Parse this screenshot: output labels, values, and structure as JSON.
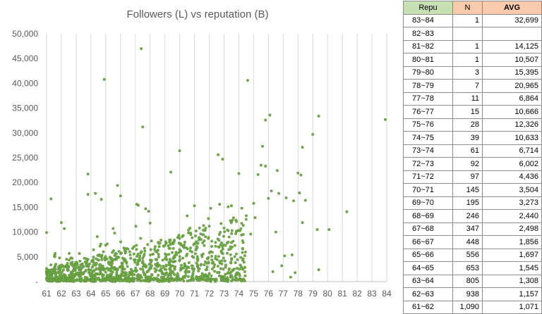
{
  "chart_data": {
    "type": "scatter",
    "title": "Followers (L) vs reputation (B)",
    "xlim": [
      61,
      84
    ],
    "ylim": [
      0,
      50000
    ],
    "x_ticks": [
      61,
      62,
      63,
      64,
      65,
      66,
      67,
      68,
      69,
      70,
      71,
      72,
      73,
      74,
      75,
      76,
      77,
      78,
      79,
      80,
      81,
      82,
      83,
      84
    ],
    "x_tick_labels": [
      "61",
      "62",
      "63",
      "64",
      "65",
      "66",
      "67",
      "68",
      "69",
      "70",
      "71",
      "72",
      "73",
      "74",
      "75",
      "76",
      "77",
      "78",
      "79",
      "80",
      "81",
      "82",
      "83",
      "84"
    ],
    "y_ticks": [
      0,
      5000,
      10000,
      15000,
      20000,
      25000,
      30000,
      35000,
      40000,
      45000,
      50000
    ],
    "y_tick_labels": [
      "-",
      "5,000",
      "10,000",
      "15,000",
      "20,000",
      "25,000",
      "30,000",
      "35,000",
      "40,000",
      "45,000",
      "50,000"
    ],
    "grid": "vertical",
    "marker_color": "#70ad47",
    "marker_edge": "#548235",
    "points": [
      [
        67.4,
        47000
      ],
      [
        64.9,
        40800
      ],
      [
        74.6,
        40600
      ],
      [
        83.9,
        32700
      ],
      [
        79.4,
        33400
      ],
      [
        76.1,
        33600
      ],
      [
        75.8,
        32600
      ],
      [
        67.5,
        31200
      ],
      [
        79.0,
        29700
      ],
      [
        78.3,
        27100
      ],
      [
        75.6,
        27300
      ],
      [
        72.6,
        25600
      ],
      [
        72.9,
        24700
      ],
      [
        70.0,
        26400
      ],
      [
        69.4,
        22100
      ],
      [
        63.8,
        21700
      ],
      [
        74.0,
        21800
      ],
      [
        78.0,
        21900
      ],
      [
        78.2,
        21500
      ],
      [
        75.5,
        23500
      ],
      [
        75.8,
        23300
      ],
      [
        76.6,
        22400
      ],
      [
        75.3,
        21600
      ],
      [
        65.8,
        19400
      ],
      [
        66.0,
        17300
      ],
      [
        63.8,
        17600
      ],
      [
        64.3,
        17800
      ],
      [
        61.3,
        16700
      ],
      [
        64.7,
        16600
      ],
      [
        67.1,
        15600
      ],
      [
        67.2,
        15400
      ],
      [
        67.7,
        14700
      ],
      [
        67.9,
        14200
      ],
      [
        71.0,
        15300
      ],
      [
        72.1,
        14800
      ],
      [
        72.7,
        15600
      ],
      [
        73.5,
        15300
      ],
      [
        74.2,
        14800
      ],
      [
        75.0,
        15800
      ],
      [
        76.0,
        16800
      ],
      [
        76.2,
        18300
      ],
      [
        76.7,
        17800
      ],
      [
        77.2,
        16900
      ],
      [
        77.7,
        16300
      ],
      [
        78.1,
        17900
      ],
      [
        78.5,
        16400
      ],
      [
        79.3,
        10500
      ],
      [
        80.1,
        10500
      ],
      [
        81.3,
        14100
      ],
      [
        79.4,
        2400
      ],
      [
        77.1,
        5200
      ],
      [
        77.6,
        5400
      ],
      [
        78.3,
        11900
      ],
      [
        75.1,
        12900
      ],
      [
        74.5,
        13300
      ],
      [
        73.8,
        12400
      ],
      [
        61.0,
        9900
      ],
      [
        62.0,
        11900
      ],
      [
        62.2,
        10700
      ],
      [
        65.5,
        10700
      ],
      [
        65.6,
        9800
      ],
      [
        68.0,
        11800
      ],
      [
        72.0,
        11200
      ],
      [
        69.0,
        7300
      ],
      [
        71.3,
        8400
      ],
      [
        70.6,
        10400
      ],
      [
        73.0,
        10800
      ],
      [
        74.8,
        9600
      ],
      [
        76.5,
        10000
      ],
      [
        74.4,
        2000
      ],
      [
        76.3,
        2000
      ],
      [
        77.5,
        900
      ],
      [
        77.8,
        1800
      ],
      [
        76.9,
        3200
      ]
    ],
    "cluster": {
      "seed": 7,
      "count": 1250
    }
  },
  "table": {
    "headers": {
      "repu": "Repu",
      "n": "N",
      "avg": "AVG"
    },
    "rows": [
      {
        "repu": "83~84",
        "n": "1",
        "avg": "32,699"
      },
      {
        "repu": "82~83",
        "n": "",
        "avg": ""
      },
      {
        "repu": "81~82",
        "n": "1",
        "avg": "14,125"
      },
      {
        "repu": "80~81",
        "n": "1",
        "avg": "10,507"
      },
      {
        "repu": "79~80",
        "n": "3",
        "avg": "15,395"
      },
      {
        "repu": "78~79",
        "n": "7",
        "avg": "20,965"
      },
      {
        "repu": "77~78",
        "n": "11",
        "avg": "6,864"
      },
      {
        "repu": "76~77",
        "n": "15",
        "avg": "10,666"
      },
      {
        "repu": "75~76",
        "n": "28",
        "avg": "12,326"
      },
      {
        "repu": "74~75",
        "n": "39",
        "avg": "10,633"
      },
      {
        "repu": "73~74",
        "n": "61",
        "avg": "6,714"
      },
      {
        "repu": "72~73",
        "n": "92",
        "avg": "6,002"
      },
      {
        "repu": "71~72",
        "n": "97",
        "avg": "4,436"
      },
      {
        "repu": "70~71",
        "n": "145",
        "avg": "3,504"
      },
      {
        "repu": "69~70",
        "n": "195",
        "avg": "3,273"
      },
      {
        "repu": "68~69",
        "n": "246",
        "avg": "2,440"
      },
      {
        "repu": "67~68",
        "n": "347",
        "avg": "2,498"
      },
      {
        "repu": "66~67",
        "n": "448",
        "avg": "1,856"
      },
      {
        "repu": "65~66",
        "n": "556",
        "avg": "1,697"
      },
      {
        "repu": "64~65",
        "n": "653",
        "avg": "1,545"
      },
      {
        "repu": "63~64",
        "n": "805",
        "avg": "1,308"
      },
      {
        "repu": "62~63",
        "n": "938",
        "avg": "1,157"
      },
      {
        "repu": "61~62",
        "n": "1,090",
        "avg": "1,071"
      }
    ]
  }
}
